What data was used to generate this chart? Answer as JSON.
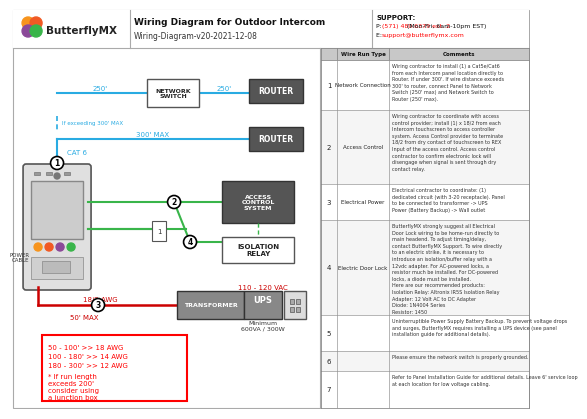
{
  "title": "Wiring Diagram for Outdoor Intercom",
  "subtitle": "Wiring-Diagram-v20-2021-12-08",
  "support_title": "SUPPORT:",
  "support_phone": "P: (571) 480.6379 ext. 2 (Mon-Fri, 6am-10pm EST)",
  "support_email": "support@butterflymx.com",
  "bg_color": "#ffffff",
  "cyan": "#29abe2",
  "green": "#39b54a",
  "red": "#ff0000",
  "dark_red": "#cc0000",
  "black": "#000000",
  "dark_gray": "#444444",
  "router_bg": "#555555",
  "acs_bg": "#555555",
  "trans_bg": "#888888",
  "table_header_bg": "#c8c8c8",
  "logo_colors": [
    "#f7941d",
    "#f15a24",
    "#8b4999",
    "#39b54a"
  ],
  "wire_run_rows": [
    {
      "num": "1",
      "type": "Network Connection",
      "comment": "Wiring contractor to install (1) a Cat5e/Cat6\nfrom each Intercom panel location directly to\nRouter. If under 300'. If wire distance exceeds\n300' to router, connect Panel to Network\nSwitch (250' max) and Network Switch to\nRouter (250' max)."
    },
    {
      "num": "2",
      "type": "Access Control",
      "comment": "Wiring contractor to coordinate with access\ncontrol provider; install (1) x 18/2 from each\nIntercom touchscreen to access controller\nsystem. Access Control provider to terminate\n18/2 from dry contact of touchscreen to REX\nInput of the access control. Access control\ncontractor to confirm electronic lock will\ndisengage when signal is sent through dry\ncontact relay."
    },
    {
      "num": "3",
      "type": "Electrical Power",
      "comment": "Electrical contractor to coordinate: (1)\ndedicated circuit (with 3-20 receptacle). Panel\nto be connected to transformer -> UPS\nPower (Battery Backup) -> Wall outlet"
    },
    {
      "num": "4",
      "type": "Electric Door Lock",
      "comment": "ButterflyMX strongly suggest all Electrical\nDoor Lock wiring to be home-run directly to\nmain headend. To adjust timing/delay,\ncontact ButterflyMX Support. To wire directly\nto an electric strike, it is necessary to\nintroduce an isolation/buffer relay with a\n12vdc adapter. For AC-powered locks, a\nresistor much be installed. For DC-powered\nlocks, a diode must be installed.\nHere are our recommended products:\nIsolation Relay: Altronix IR5S Isolation Relay\nAdapter: 12 Volt AC to DC Adapter\nDiode: 1N4004 Series\nResistor: 1450"
    },
    {
      "num": "5",
      "type": "",
      "comment": "Uninterruptible Power Supply Battery Backup. To prevent voltage drops\nand surges, ButterflyMX requires installing a UPS device (see panel\ninstallation guide for additional details)."
    },
    {
      "num": "6",
      "type": "",
      "comment": "Please ensure the network switch is properly grounded."
    },
    {
      "num": "7",
      "type": "",
      "comment": "Refer to Panel Installation Guide for additional details. Leave 6' service loop\nat each location for low voltage cabling."
    }
  ]
}
